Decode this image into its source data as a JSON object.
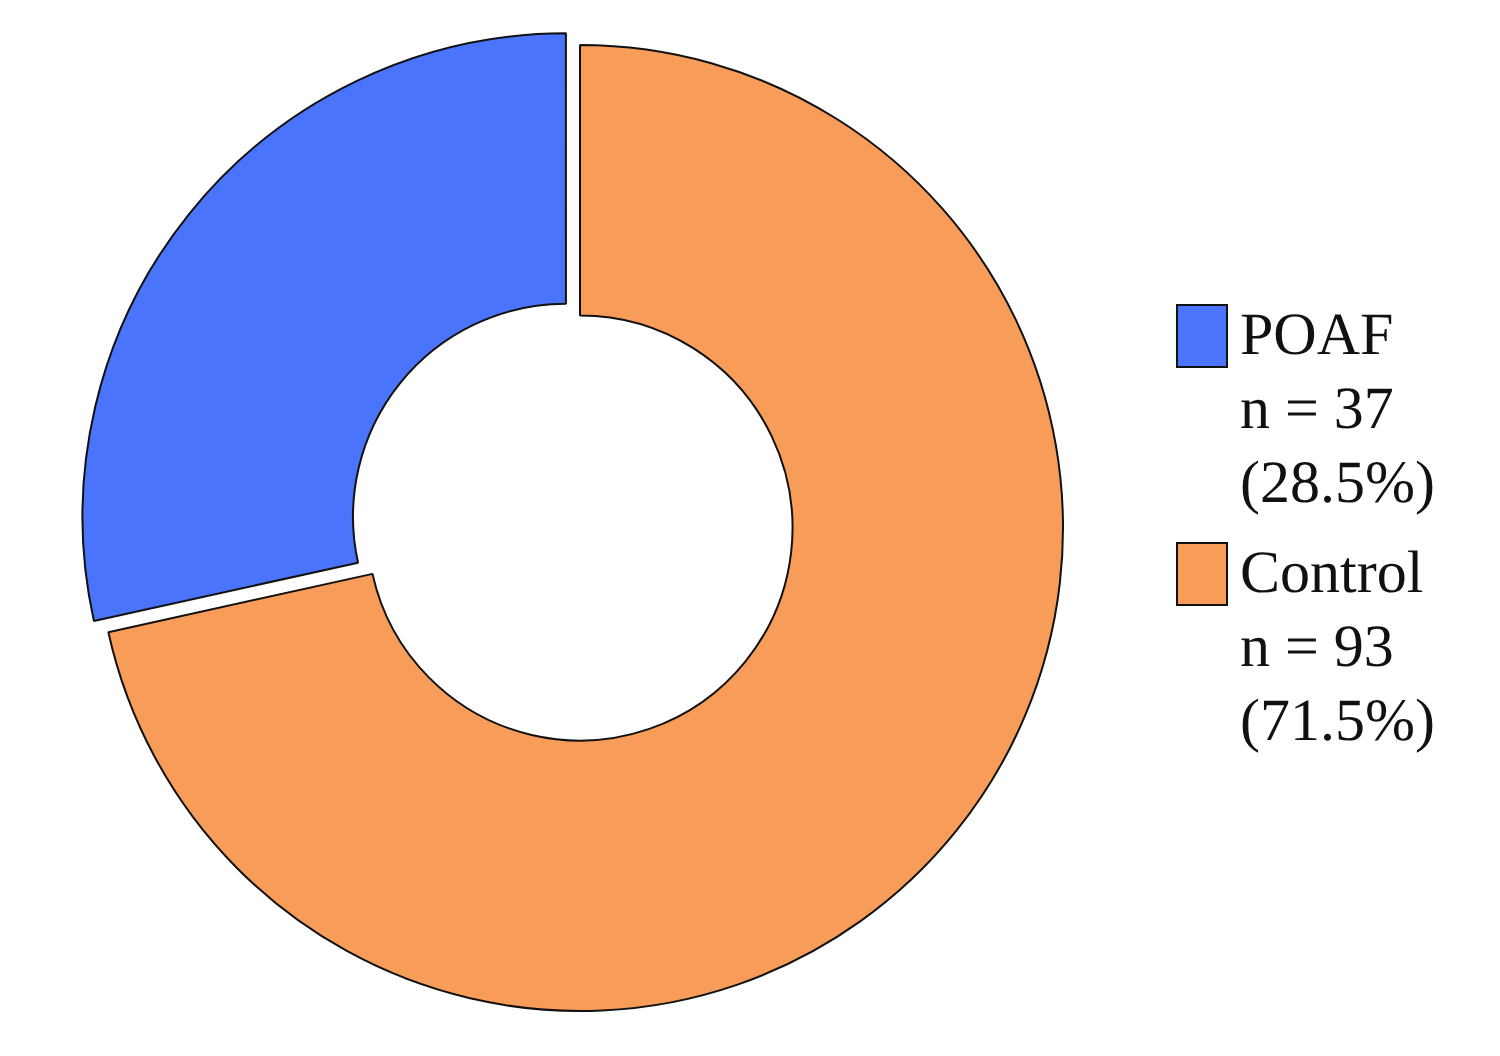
{
  "chart_data": {
    "type": "donut",
    "categories": [
      "POAF",
      "Control"
    ],
    "values": [
      37,
      93
    ],
    "colors": [
      "#4a74fb",
      "#f89c5a"
    ],
    "value_labels": [
      "n = 37 (28.5%)",
      "n = 93 (71.5%)"
    ],
    "legend": "right"
  }
}
